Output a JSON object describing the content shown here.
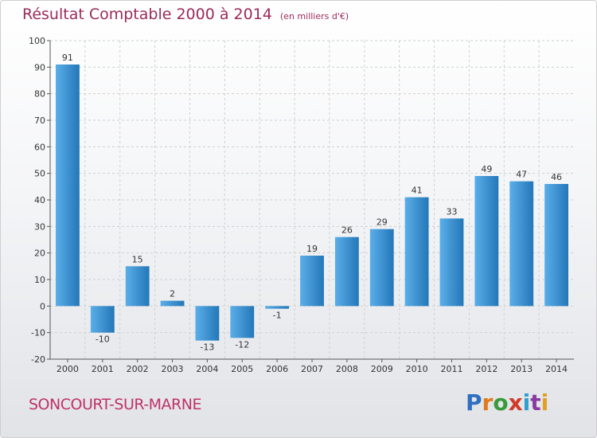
{
  "header": {
    "title": "Résultat Comptable 2000 à 2014",
    "subtitle": "(en milliers d'€)"
  },
  "commune": "SONCOURT-SUR-MARNE",
  "logo": {
    "letters": [
      "P",
      "r",
      "o",
      "x",
      "i",
      "t",
      "i"
    ],
    "colors": [
      "#2f6fc0",
      "#e07a1a",
      "#3a9a3a",
      "#d23a2a",
      "#2f9fd0",
      "#8a3aa0",
      "#e0a020"
    ]
  },
  "colors": {
    "bar_light": "#5aaee8",
    "bar_dark": "#2477b8",
    "grid": "#d0d0d0",
    "axis": "#555555",
    "title": "#9c2a5a",
    "commune": "#c0326a"
  },
  "chart_data": {
    "type": "bar",
    "categories": [
      "2000",
      "2001",
      "2002",
      "2003",
      "2004",
      "2005",
      "2006",
      "2007",
      "2008",
      "2009",
      "2010",
      "2011",
      "2012",
      "2013",
      "2014"
    ],
    "values": [
      91,
      -10,
      15,
      2,
      -13,
      -12,
      -1,
      19,
      26,
      29,
      41,
      33,
      49,
      47,
      46
    ],
    "labels": [
      "91",
      "-10",
      "15",
      "2",
      "-13",
      "-12",
      "-1",
      "19",
      "26",
      "29",
      "41",
      "33",
      "49",
      "47",
      "46"
    ],
    "yticks": [
      "-20",
      "-10",
      "0",
      "10",
      "20",
      "30",
      "40",
      "50",
      "60",
      "70",
      "80",
      "90",
      "100"
    ],
    "ylim": [
      -20,
      100
    ],
    "grid": true
  }
}
